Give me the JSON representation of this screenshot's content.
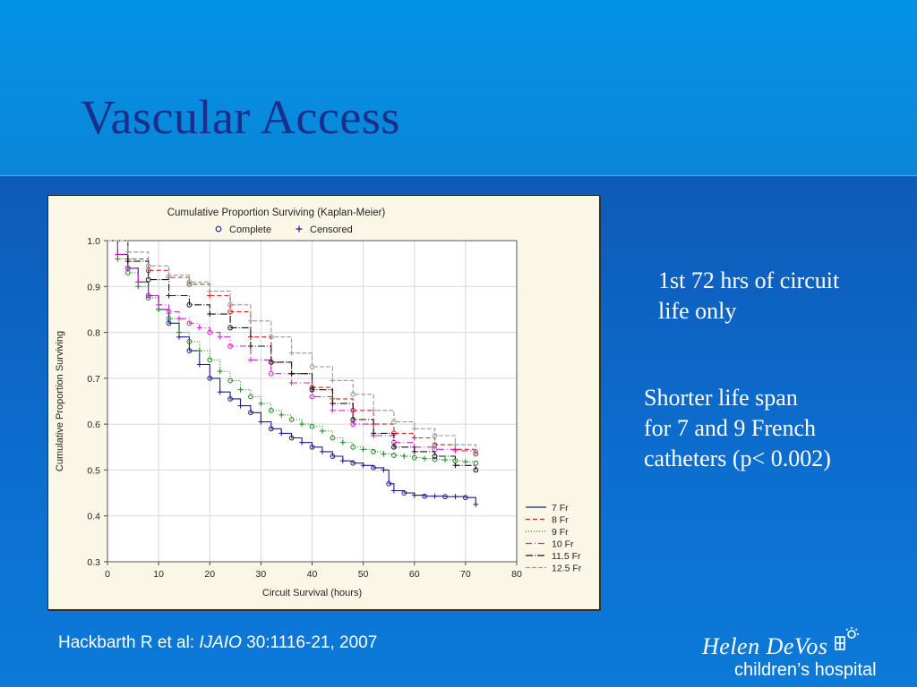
{
  "slide": {
    "title": "Vascular Access",
    "note1_line1": "1st 72 hrs of circuit",
    "note1_line2": "life only",
    "note2_line1": "Shorter life span",
    "note2_line2": "for 7 and 9 French",
    "note2_line3": "catheters (p< 0.002)",
    "citation_authors": "Hackbarth R et al: ",
    "citation_journal": "IJAIO",
    "citation_ref": " 30:1116-21, 2007",
    "logo_line1": "Helen DeVos",
    "logo_line2": "children’s hospital",
    "logo_icon": "sun-child-icon"
  },
  "chart_data": {
    "type": "line",
    "title": "Cumulative Proportion Surviving (Kaplan-Meier)",
    "marker_legend": [
      {
        "label": "Complete",
        "marker": "circle"
      },
      {
        "label": "Censored",
        "marker": "plus"
      }
    ],
    "xlabel": "Circuit Survival (hours)",
    "ylabel": "Cumulative Proportion Surviving",
    "xlim": [
      0,
      80
    ],
    "ylim": [
      0.3,
      1.0
    ],
    "xticks": [
      0,
      10,
      20,
      30,
      40,
      50,
      60,
      70,
      80
    ],
    "yticks": [
      "0.3",
      "0.4",
      "0.5",
      "0.6",
      "0.7",
      "0.8",
      "0.9",
      "1.0"
    ],
    "grid": true,
    "legend_position": "bottom-right",
    "series": [
      {
        "name": "7 Fr",
        "color": "#1c1c8c",
        "dash": "",
        "x": [
          0,
          2,
          4,
          6,
          8,
          10,
          12,
          14,
          16,
          18,
          20,
          22,
          24,
          26,
          28,
          30,
          32,
          34,
          36,
          38,
          40,
          42,
          44,
          46,
          48,
          50,
          52,
          54,
          55,
          56,
          58,
          60,
          62,
          64,
          66,
          68,
          70,
          72
        ],
        "y": [
          1.0,
          0.97,
          0.94,
          0.91,
          0.88,
          0.85,
          0.82,
          0.79,
          0.76,
          0.73,
          0.7,
          0.67,
          0.655,
          0.64,
          0.625,
          0.605,
          0.59,
          0.58,
          0.57,
          0.56,
          0.55,
          0.54,
          0.53,
          0.52,
          0.515,
          0.51,
          0.505,
          0.5,
          0.47,
          0.455,
          0.45,
          0.445,
          0.443,
          0.443,
          0.442,
          0.442,
          0.44,
          0.425
        ]
      },
      {
        "name": "8 Fr",
        "color": "#d02020",
        "dash": "5,3",
        "x": [
          0,
          4,
          8,
          12,
          16,
          20,
          24,
          28,
          32,
          36,
          40,
          44,
          48,
          52,
          56,
          60,
          64,
          68,
          72
        ],
        "y": [
          1.0,
          0.96,
          0.935,
          0.92,
          0.905,
          0.88,
          0.845,
          0.79,
          0.735,
          0.71,
          0.68,
          0.655,
          0.63,
          0.6,
          0.58,
          0.57,
          0.555,
          0.545,
          0.535
        ]
      },
      {
        "name": "9 Fr",
        "color": "#1c8c1c",
        "dash": "1,2",
        "x": [
          0,
          2,
          4,
          6,
          8,
          10,
          12,
          14,
          16,
          18,
          20,
          22,
          24,
          26,
          28,
          30,
          32,
          34,
          36,
          38,
          40,
          42,
          44,
          46,
          48,
          50,
          52,
          54,
          56,
          58,
          60,
          62,
          64,
          66,
          68,
          70,
          72
        ],
        "y": [
          1.0,
          0.96,
          0.93,
          0.9,
          0.875,
          0.85,
          0.83,
          0.8,
          0.78,
          0.76,
          0.74,
          0.715,
          0.695,
          0.675,
          0.66,
          0.645,
          0.63,
          0.62,
          0.61,
          0.6,
          0.595,
          0.585,
          0.57,
          0.56,
          0.55,
          0.545,
          0.54,
          0.535,
          0.532,
          0.53,
          0.527,
          0.525,
          0.523,
          0.522,
          0.52,
          0.518,
          0.515
        ]
      },
      {
        "name": "10 Fr",
        "color": "#d020d0",
        "dash": "7,3,1,3",
        "x": [
          0,
          2,
          4,
          6,
          8,
          10,
          12,
          14,
          16,
          18,
          20,
          22,
          24,
          28,
          32,
          36,
          40,
          44,
          48,
          52,
          56,
          60,
          64,
          68,
          72
        ],
        "y": [
          1.0,
          0.97,
          0.94,
          0.91,
          0.88,
          0.86,
          0.845,
          0.83,
          0.82,
          0.81,
          0.8,
          0.79,
          0.77,
          0.74,
          0.71,
          0.69,
          0.66,
          0.63,
          0.6,
          0.575,
          0.56,
          0.55,
          0.545,
          0.542,
          0.54
        ]
      },
      {
        "name": "11.5 Fr",
        "color": "#111111",
        "dash": "8,2,1,2",
        "x": [
          0,
          4,
          8,
          12,
          16,
          20,
          24,
          28,
          32,
          36,
          40,
          44,
          48,
          52,
          56,
          60,
          64,
          68,
          72
        ],
        "y": [
          1.0,
          0.955,
          0.915,
          0.88,
          0.86,
          0.84,
          0.81,
          0.77,
          0.735,
          0.71,
          0.675,
          0.645,
          0.61,
          0.58,
          0.55,
          0.54,
          0.53,
          0.51,
          0.5
        ]
      },
      {
        "name": "12.5 Fr",
        "color": "#999999",
        "dash": "5,2",
        "x": [
          0,
          4,
          8,
          12,
          16,
          20,
          24,
          28,
          32,
          36,
          40,
          44,
          48,
          52,
          56,
          60,
          64,
          68,
          72
        ],
        "y": [
          1.0,
          0.975,
          0.945,
          0.925,
          0.91,
          0.89,
          0.86,
          0.825,
          0.79,
          0.755,
          0.725,
          0.695,
          0.665,
          0.63,
          0.605,
          0.59,
          0.575,
          0.555,
          0.54
        ]
      }
    ]
  }
}
